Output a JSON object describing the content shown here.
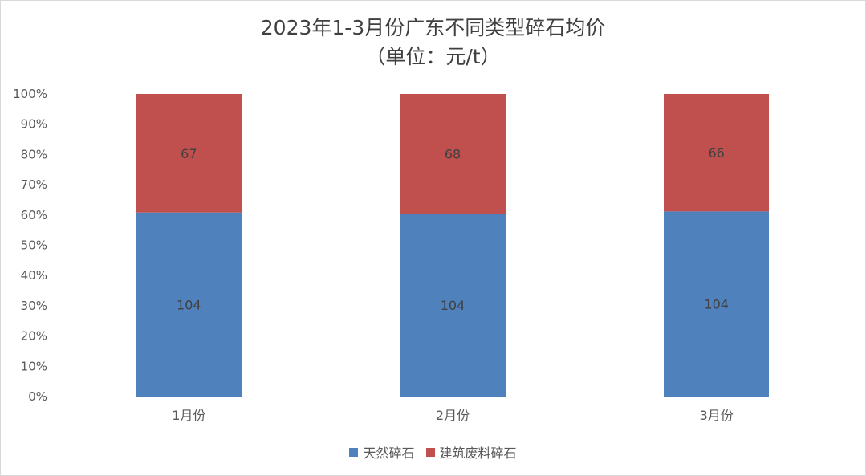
{
  "chart_data": {
    "type": "bar",
    "stacked": "percent",
    "title_line1": "2023年1-3月份广东不同类型碎石均价",
    "title_line2": "（单位：元/t）",
    "categories": [
      "1月份",
      "2月份",
      "3月份"
    ],
    "series": [
      {
        "name": "天然碎石",
        "values": [
          104,
          104,
          104
        ],
        "color": "#4f81bd"
      },
      {
        "name": "建筑废料碎石",
        "values": [
          67,
          68,
          66
        ],
        "color": "#c0504d"
      }
    ],
    "yticks": [
      "0%",
      "10%",
      "20%",
      "30%",
      "40%",
      "50%",
      "60%",
      "70%",
      "80%",
      "90%",
      "100%"
    ],
    "ylim": [
      0,
      100
    ],
    "grid": false,
    "legend": "bottom"
  }
}
